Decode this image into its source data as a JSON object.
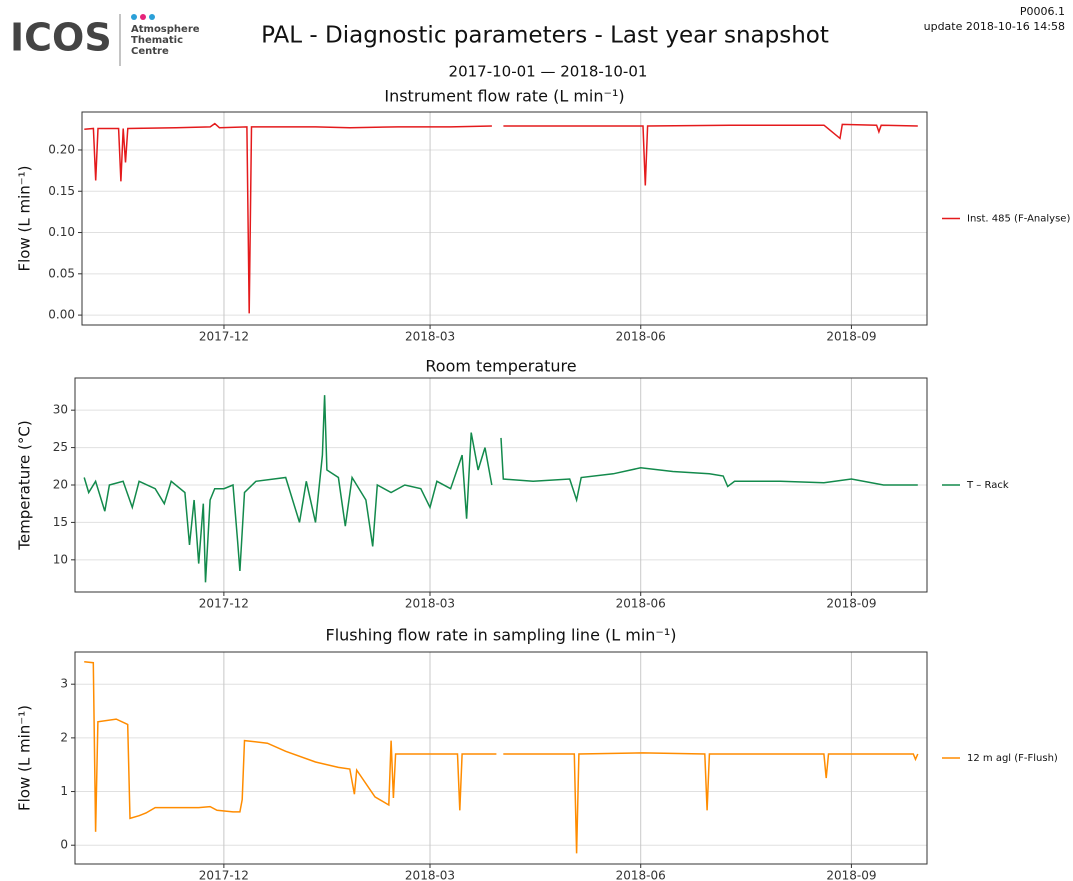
{
  "header": {
    "logo": "ICOS",
    "logo_sub": [
      "Atmosphere",
      "Thematic",
      "Centre"
    ],
    "title": "PAL - Diagnostic parameters - Last year snapshot",
    "date_range": "2017-10-01 — 2018-10-01",
    "page_id": "P0006.1",
    "update": "update  2018-10-16 14:58"
  },
  "chart_data": [
    {
      "type": "line",
      "title": "Instrument flow rate (L min⁻¹)",
      "y_label": "Flow (L min⁻¹)",
      "x": [
        "2017-10-01",
        "2017-10-05",
        "2017-10-06",
        "2017-10-07",
        "2017-10-16",
        "2017-10-17",
        "2017-10-18",
        "2017-10-19",
        "2017-10-20",
        "2017-11-10",
        "2017-11-25",
        "2017-11-27",
        "2017-11-29",
        "2017-12-11",
        "2017-12-12",
        "2017-12-13",
        "2018-01-10",
        "2018-01-25",
        "2018-02-15",
        "2018-03-10",
        "2018-03-28",
        "2018-03-30",
        "2018-04-02",
        "2018-05-01",
        "2018-06-02",
        "2018-06-03",
        "2018-06-04",
        "2018-07-10",
        "2018-08-20",
        "2018-08-27",
        "2018-08-28",
        "2018-09-12",
        "2018-09-13",
        "2018-09-14",
        "2018-09-30"
      ],
      "series": [
        {
          "name": "Inst. 485 (F-Analyse)",
          "color": "#e41a1c",
          "values": [
            0.225,
            0.226,
            0.163,
            0.226,
            0.226,
            0.162,
            0.226,
            0.185,
            0.226,
            0.227,
            0.228,
            0.232,
            0.227,
            0.228,
            0.002,
            0.228,
            0.228,
            0.227,
            0.228,
            0.228,
            0.229,
            null,
            0.229,
            0.229,
            0.229,
            0.157,
            0.229,
            0.23,
            0.23,
            0.214,
            0.231,
            0.23,
            0.222,
            0.23,
            0.229
          ]
        }
      ],
      "xlim": [
        "2017-09-30",
        "2018-10-04"
      ],
      "xticks": [
        "2017-12",
        "2018-03",
        "2018-06",
        "2018-09"
      ],
      "ylim": [
        -0.012,
        0.246
      ],
      "yticks": [
        {
          "value": 0,
          "label": "0.00"
        },
        0.05,
        {
          "value": 0.1,
          "label": "0.10"
        },
        0.15,
        {
          "value": 0.2,
          "label": "0.20"
        }
      ],
      "grid": true,
      "legend": "right"
    },
    {
      "type": "line",
      "title": "Room temperature",
      "y_label": "Temperature (°C)",
      "x": [
        "2017-10-01",
        "2017-10-03",
        "2017-10-06",
        "2017-10-10",
        "2017-10-12",
        "2017-10-18",
        "2017-10-22",
        "2017-10-25",
        "2017-11-01",
        "2017-11-05",
        "2017-11-08",
        "2017-11-14",
        "2017-11-16",
        "2017-11-18",
        "2017-11-20",
        "2017-11-22",
        "2017-11-23",
        "2017-11-25",
        "2017-11-27",
        "2017-12-01",
        "2017-12-05",
        "2017-12-07",
        "2017-12-08",
        "2017-12-10",
        "2017-12-15",
        "2017-12-28",
        "2018-01-03",
        "2018-01-06",
        "2018-01-10",
        "2018-01-13",
        "2018-01-14",
        "2018-01-15",
        "2018-01-20",
        "2018-01-23",
        "2018-01-26",
        "2018-02-01",
        "2018-02-04",
        "2018-02-06",
        "2018-02-12",
        "2018-02-18",
        "2018-02-25",
        "2018-03-01",
        "2018-03-04",
        "2018-03-10",
        "2018-03-15",
        "2018-03-17",
        "2018-03-19",
        "2018-03-22",
        "2018-03-25",
        "2018-03-28",
        "2018-03-29",
        "2018-04-01",
        "2018-04-02",
        "2018-04-15",
        "2018-05-01",
        "2018-05-04",
        "2018-05-06",
        "2018-05-20",
        "2018-06-01",
        "2018-06-15",
        "2018-07-01",
        "2018-07-07",
        "2018-07-09",
        "2018-07-12",
        "2018-08-01",
        "2018-08-20",
        "2018-09-01",
        "2018-09-15",
        "2018-09-30"
      ],
      "series": [
        {
          "name": "T – Rack",
          "color": "#138a4c",
          "values": [
            21,
            19,
            20.5,
            16.5,
            20,
            20.5,
            17,
            20.5,
            19.5,
            17.5,
            20.5,
            19,
            12,
            18,
            9.5,
            17.5,
            7,
            18,
            19.5,
            19.5,
            20,
            12.5,
            8.5,
            19,
            20.5,
            21,
            15,
            20.5,
            15,
            24,
            32,
            22,
            21,
            14.5,
            21,
            18,
            11.8,
            20,
            19,
            20,
            19.5,
            17,
            20.5,
            19.5,
            24,
            15.5,
            27,
            22,
            25,
            20,
            null,
            26.3,
            20.8,
            20.5,
            20.8,
            18,
            21,
            21.5,
            22.3,
            21.8,
            21.5,
            21.2,
            19.8,
            20.5,
            20.5,
            20.3,
            20.8,
            20,
            20
          ]
        }
      ],
      "xlim": [
        "2017-09-27",
        "2018-10-04"
      ],
      "xticks": [
        "2017-12",
        "2018-03",
        "2018-06",
        "2018-09"
      ],
      "ylim": [
        5.7,
        34.3
      ],
      "yticks": [
        10,
        15,
        20,
        25,
        30
      ],
      "grid": true,
      "legend": "right"
    },
    {
      "type": "line",
      "title": "Flushing flow rate in sampling line (L min⁻¹)",
      "y_label": "Flow (L min⁻¹)",
      "x": [
        "2017-10-01",
        "2017-10-05",
        "2017-10-06",
        "2017-10-07",
        "2017-10-15",
        "2017-10-20",
        "2017-10-21",
        "2017-10-25",
        "2017-10-28",
        "2017-11-01",
        "2017-11-20",
        "2017-11-25",
        "2017-11-28",
        "2017-12-05",
        "2017-12-08",
        "2017-12-09",
        "2017-12-10",
        "2017-12-20",
        "2017-12-28",
        "2018-01-10",
        "2018-01-20",
        "2018-01-25",
        "2018-01-27",
        "2018-01-28",
        "2018-02-05",
        "2018-02-11",
        "2018-02-12",
        "2018-02-13",
        "2018-02-14",
        "2018-03-10",
        "2018-03-13",
        "2018-03-14",
        "2018-03-15",
        "2018-03-30",
        "2018-03-31",
        "2018-04-02",
        "2018-05-03",
        "2018-05-04",
        "2018-05-05",
        "2018-06-02",
        "2018-06-29",
        "2018-06-30",
        "2018-07-01",
        "2018-08-20",
        "2018-08-21",
        "2018-08-22",
        "2018-09-28",
        "2018-09-29",
        "2018-09-30"
      ],
      "series": [
        {
          "name": "12 m agl (F-Flush)",
          "color": "#ff8c00",
          "values": [
            3.42,
            3.4,
            0.25,
            2.3,
            2.35,
            2.25,
            0.5,
            0.55,
            0.6,
            0.7,
            0.7,
            0.72,
            0.65,
            0.62,
            0.62,
            0.85,
            1.95,
            1.9,
            1.75,
            1.55,
            1.45,
            1.42,
            0.95,
            1.4,
            0.9,
            0.75,
            1.95,
            0.88,
            1.7,
            1.7,
            1.7,
            0.65,
            1.7,
            1.7,
            null,
            1.7,
            1.7,
            -0.15,
            1.7,
            1.72,
            1.7,
            0.65,
            1.7,
            1.7,
            1.25,
            1.7,
            1.7,
            1.6,
            1.7
          ]
        }
      ],
      "xlim": [
        "2017-09-27",
        "2018-10-04"
      ],
      "xticks": [
        "2017-12",
        "2018-03",
        "2018-06",
        "2018-09"
      ],
      "ylim": [
        -0.35,
        3.6
      ],
      "yticks": [
        0,
        1,
        2,
        3
      ],
      "grid": true,
      "legend": "right"
    }
  ]
}
